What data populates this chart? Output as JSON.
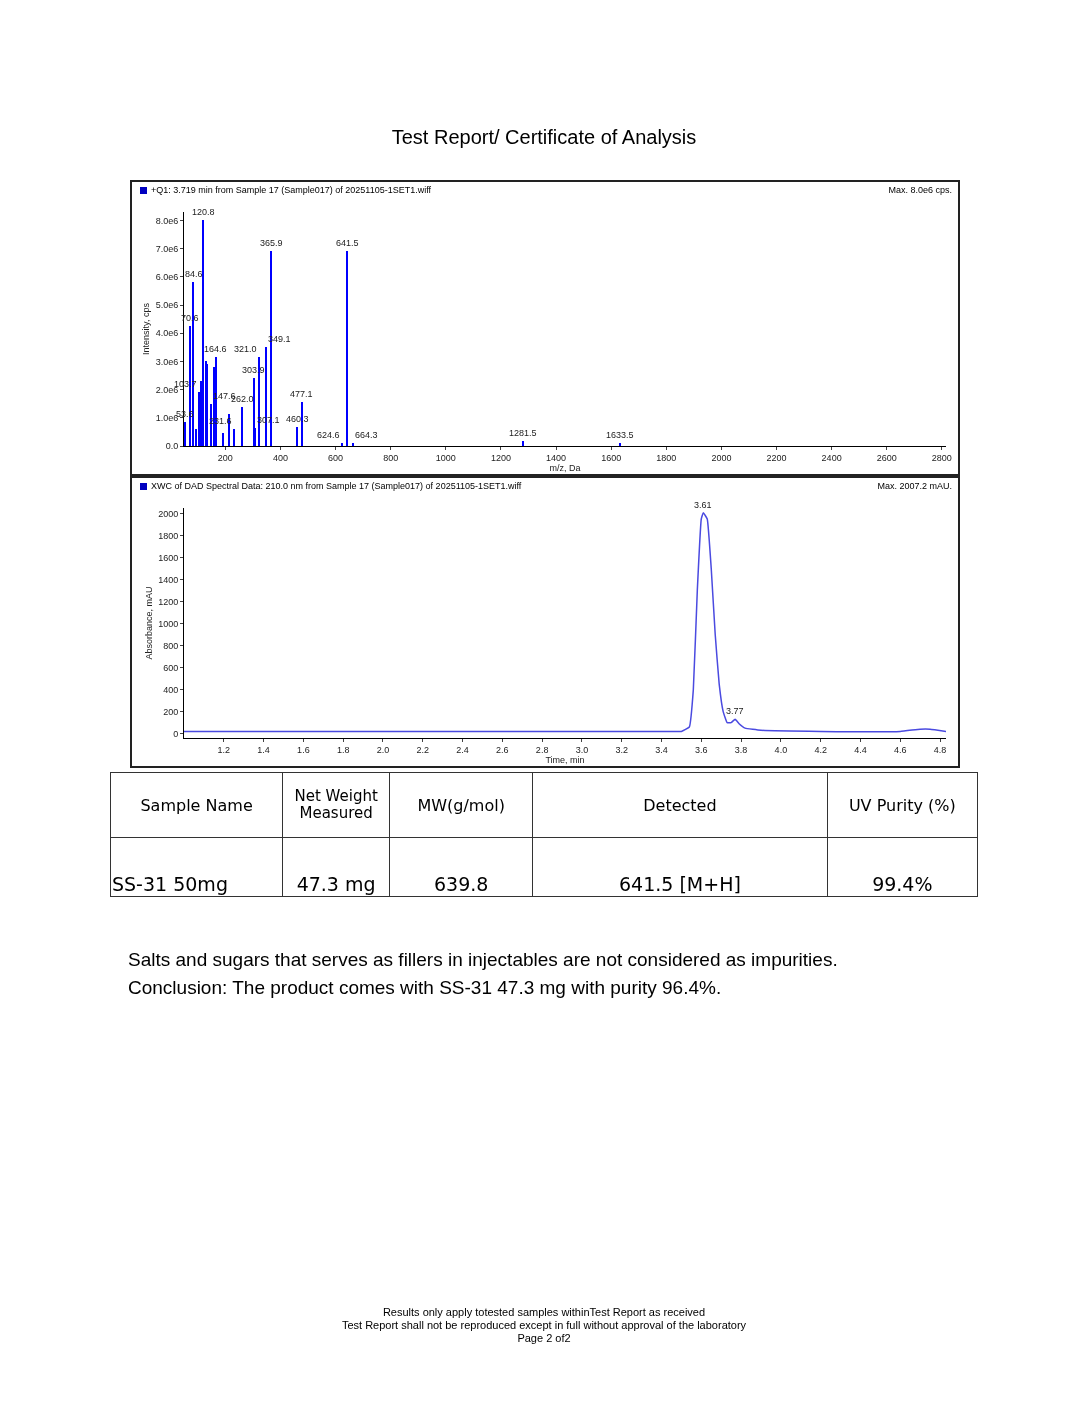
{
  "chart_data": [
    {
      "type": "bar",
      "title": "Test Report/ Certificate of Analysis",
      "subtitle": "+Q1: 3.719 min from Sample 17 (Sample017) of 20251105-1SET1.wiff",
      "xlabel": "m/z, Da",
      "ylabel": "Intensity, cps",
      "x": [
        53.6,
        70.6,
        84.6,
        95,
        103.7,
        112,
        120.8,
        130,
        135,
        147.6,
        160,
        164.6,
        191,
        215,
        231.6,
        262.0,
        303.9,
        307.1,
        321.0,
        349.1,
        365.9,
        460.3,
        477.1,
        624.6,
        641.5,
        664.3,
        1281.5,
        1633.5
      ],
      "values": [
        850000,
        4250000,
        5800000,
        600000,
        1900000,
        2300000,
        8000000,
        3000000,
        2900000,
        1500000,
        2800000,
        3150000,
        450000,
        1150000,
        600000,
        1400000,
        2400000,
        650000,
        3150000,
        3500000,
        6900000,
        680000,
        1550000,
        100000,
        6900000,
        100000,
        170000,
        100000
      ],
      "annotations": [
        "Max. 8.0e6 cps.",
        {
          "text": "53.6",
          "x": 53.6,
          "y": 850000
        },
        {
          "text": "70.6",
          "x": 70.6,
          "y": 4250000
        },
        {
          "text": "84.6",
          "x": 84.6,
          "y": 5800000
        },
        {
          "text": "103.7",
          "x": 103.7,
          "y": 1900000
        },
        {
          "text": "120.8",
          "x": 120.8,
          "y": 8000000
        },
        {
          "text": "147.6",
          "x": 147.6,
          "y": 1500000
        },
        {
          "text": "164.6",
          "x": 164.6,
          "y": 3150000
        },
        {
          "text": "231.6",
          "x": 231.6,
          "y": 600000
        },
        {
          "text": "262.0",
          "x": 262.0,
          "y": 1400000
        },
        {
          "text": "303.9",
          "x": 303.9,
          "y": 2400000
        },
        {
          "text": "307.1",
          "x": 307.1,
          "y": 650000
        },
        {
          "text": "321.0",
          "x": 321.0,
          "y": 3150000
        },
        {
          "text": "349.1",
          "x": 349.1,
          "y": 3500000
        },
        {
          "text": "365.9",
          "x": 365.9,
          "y": 6900000
        },
        {
          "text": "460.3",
          "x": 460.3,
          "y": 680000
        },
        {
          "text": "477.1",
          "x": 477.1,
          "y": 1550000
        },
        {
          "text": "624.6",
          "x": 624.6,
          "y": 100000
        },
        {
          "text": "641.5",
          "x": 641.5,
          "y": 6900000
        },
        {
          "text": "664.3",
          "x": 664.3,
          "y": 100000
        },
        {
          "text": "1281.5",
          "x": 1281.5,
          "y": 170000
        },
        {
          "text": "1633.5",
          "x": 1633.5,
          "y": 100000
        }
      ],
      "color": "#0000ff",
      "xlim": [
        50,
        2815
      ],
      "ylim": [
        0,
        8300000
      ],
      "xticks": [
        200,
        400,
        600,
        800,
        1000,
        1200,
        1400,
        1600,
        1800,
        2000,
        2200,
        2400,
        2600,
        2800
      ],
      "yticks": [
        {
          "value": 0,
          "label": "0.0"
        },
        {
          "value": 1000000,
          "label": "1.0e6"
        },
        {
          "value": 2000000,
          "label": "2.0e6"
        },
        {
          "value": 3000000,
          "label": "3.0e6"
        },
        {
          "value": 4000000,
          "label": "4.0e6"
        },
        {
          "value": 5000000,
          "label": "5.0e6"
        },
        {
          "value": 6000000,
          "label": "6.0e6"
        },
        {
          "value": 7000000,
          "label": "7.0e6"
        },
        {
          "value": 8000000,
          "label": "8.0e6"
        }
      ],
      "grid": false,
      "legend": false
    },
    {
      "type": "line",
      "subtitle": "XWC of DAD Spectral Data: 210.0 nm from Sample 17 (Sample017) of 20251105-1SET1.wiff",
      "xlabel": "Time, min",
      "ylabel": "Absorbance, mAU",
      "x": [
        1.0,
        2.0,
        3.0,
        3.4,
        3.5,
        3.54,
        3.56,
        3.58,
        3.6,
        3.61,
        3.63,
        3.65,
        3.67,
        3.69,
        3.71,
        3.73,
        3.75,
        3.77,
        3.79,
        3.82,
        3.9,
        4.2,
        4.6,
        4.7,
        4.75,
        4.83
      ],
      "values": [
        20,
        20,
        20,
        20,
        20,
        60,
        400,
        1300,
        1950,
        2007,
        1950,
        1500,
        900,
        450,
        200,
        100,
        100,
        130,
        90,
        50,
        30,
        20,
        20,
        40,
        40,
        20
      ],
      "color": "#4a4ae0",
      "xlim": [
        1.0,
        4.83
      ],
      "ylim": [
        -40,
        2050
      ],
      "xticks": [
        1.2,
        1.4,
        1.6,
        1.8,
        {
          "value": 2,
          "label": "2.0"
        },
        2.2,
        2.4,
        2.6,
        2.8,
        {
          "value": 3,
          "label": "3.0"
        },
        3.2,
        3.4,
        3.6,
        3.8,
        {
          "value": 4,
          "label": "4.0"
        },
        4.2,
        4.4,
        4.6,
        4.8
      ],
      "yticks": [
        0,
        200,
        400,
        600,
        800,
        1000,
        1200,
        1400,
        1600,
        1800,
        2000
      ],
      "grid": false,
      "legend": false,
      "marker": "none",
      "line_style": "solid",
      "annotations": [
        {
          "text": "3.61",
          "x": 3.61,
          "y": 2007
        },
        {
          "text": "3.77",
          "x": 3.77,
          "y": 130
        },
        "Max. 2007.2 mAU.",
        "Sample Name",
        "Net Weight Measured",
        "MW(g/mol)",
        "Detected",
        "UV Purity (%)",
        "SS-31 50mg",
        "47.3 mg",
        "639.8",
        "641.5 [M+H]",
        "99.4%",
        "Salts and sugars that serves as fillers in injectables are not considered as impurities.",
        "Conclusion: The product comes with SS-31 47.3 mg with purity 96.4%.",
        "Results only apply totested samples withinTest Report as received",
        "Test Report shall not be reproduced except in full without approval of the laboratory",
        "Page 2 of2"
      ]
    }
  ]
}
